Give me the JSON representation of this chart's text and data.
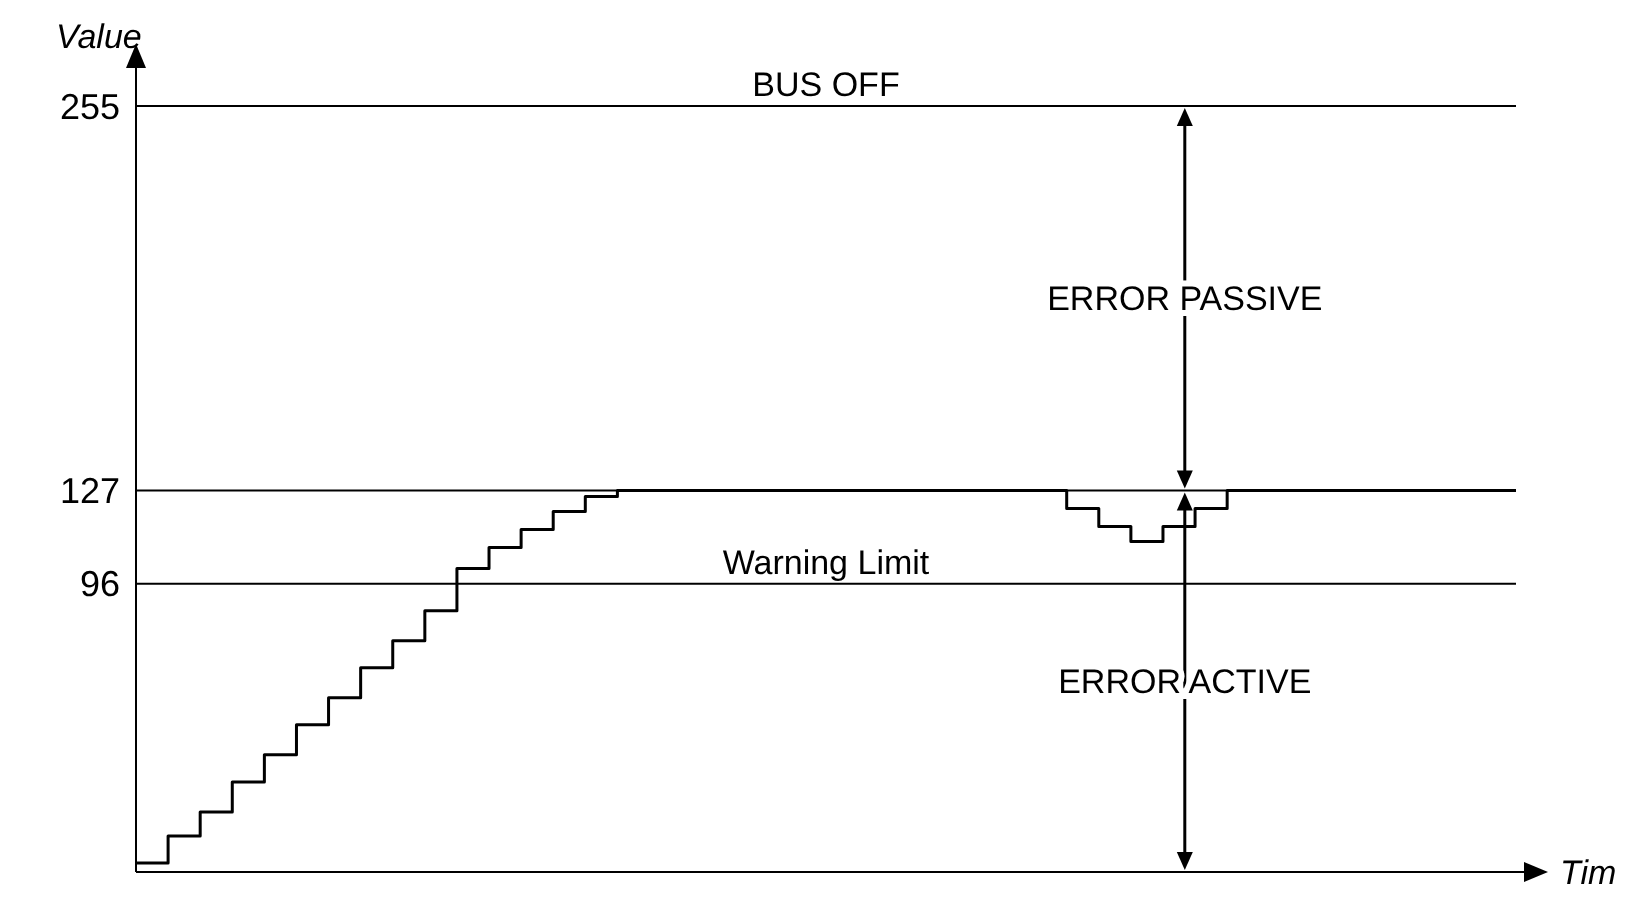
{
  "chart_data": {
    "type": "step",
    "xlabel": "Tim",
    "ylabel": "Value",
    "categories": [
      null,
      null,
      null,
      null,
      null,
      null,
      null,
      null,
      null,
      null,
      null,
      null,
      null,
      null,
      null,
      null,
      null,
      null,
      null,
      null,
      null,
      null,
      null,
      null,
      null,
      null,
      null,
      null,
      null,
      null,
      null,
      null,
      null,
      null,
      null,
      null,
      null,
      null,
      null,
      null,
      null,
      null,
      null,
      null
    ],
    "values": [
      3,
      12,
      20,
      30,
      39,
      49,
      58,
      68,
      77,
      87,
      101,
      108,
      114,
      120,
      125,
      127,
      127,
      127,
      127,
      127,
      127,
      127,
      127,
      127,
      127,
      127,
      127,
      127,
      127,
      121,
      115,
      110,
      115,
      121,
      127,
      127,
      127,
      127,
      127,
      127,
      127,
      127,
      127,
      127
    ],
    "color": "#000000",
    "marker": "none",
    "line_style": "solid",
    "ylim": [
      0,
      265
    ],
    "yticks": [
      96,
      127,
      255
    ],
    "grid": false,
    "tick_labels": "y",
    "ref_lines": [
      {
        "axis": "y",
        "value": 255,
        "label": "BUS OFF",
        "color": "#000000"
      },
      {
        "axis": "y",
        "value": 127,
        "label": null,
        "color": "#000000"
      },
      {
        "axis": "y",
        "value": 96,
        "label": "Warning Limit",
        "color": "#000000"
      }
    ],
    "annotations": [
      "ERROR PASSIVE",
      "ERROR ACTIVE"
    ]
  }
}
